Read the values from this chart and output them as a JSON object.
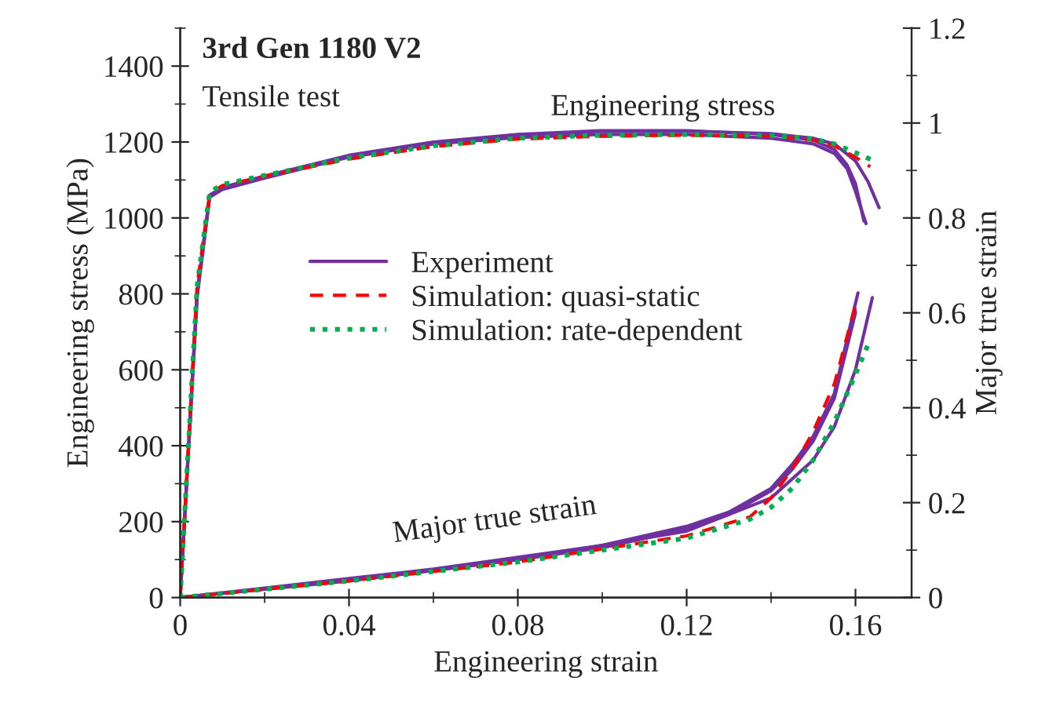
{
  "chart_data": {
    "type": "line",
    "title": "3rd Gen 1180 V2",
    "subtitle": "Tensile test",
    "xlabel": "Engineering strain",
    "ylabel": "Engineering stress (MPa)",
    "y2label": "Major true strain",
    "xlim": [
      0,
      0.1733
    ],
    "xticks": [
      0,
      0.04,
      0.08,
      0.12,
      0.16
    ],
    "ylim": [
      0,
      1500
    ],
    "yticks": [
      0,
      200,
      400,
      600,
      800,
      1000,
      1200,
      1400
    ],
    "y2lim": [
      0,
      1.2
    ],
    "y2ticks": [
      0,
      0.2,
      0.4,
      0.6,
      0.8,
      1,
      1.2
    ],
    "grid": false,
    "legend": "center left",
    "marker": "none",
    "annotations": [
      "Engineering stress",
      "Major true strain"
    ],
    "series": [
      {
        "name": "Experiment",
        "color": "#7030a0",
        "line_style": "solid",
        "x": [
          0,
          0.004,
          0.007,
          0.01,
          0.02,
          0.04,
          0.06,
          0.08,
          0.1,
          0.12,
          0.14,
          0.15,
          0.155,
          0.158,
          0.16,
          0.162
        ],
        "values": [
          0,
          800,
          1060,
          1080,
          1110,
          1165,
          1200,
          1220,
          1230,
          1230,
          1220,
          1205,
          1180,
          1140,
          1090,
          992
        ]
      },
      {
        "color": "#7030a0",
        "line_style": "solid",
        "x": [
          0,
          0.004,
          0.007,
          0.01,
          0.02,
          0.04,
          0.06,
          0.08,
          0.1,
          0.12,
          0.14,
          0.15,
          0.155,
          0.158,
          0.16,
          0.1625
        ],
        "values": [
          0,
          790,
          1055,
          1075,
          1105,
          1160,
          1195,
          1212,
          1220,
          1220,
          1210,
          1195,
          1170,
          1130,
          1070,
          985
        ]
      },
      {
        "color": "#7030a0",
        "line_style": "solid",
        "x": [
          0,
          0.004,
          0.007,
          0.01,
          0.02,
          0.04,
          0.06,
          0.08,
          0.1,
          0.12,
          0.14,
          0.15,
          0.155,
          0.16,
          0.163,
          0.1656
        ],
        "values": [
          0,
          800,
          1060,
          1080,
          1110,
          1162,
          1198,
          1218,
          1228,
          1228,
          1222,
          1210,
          1195,
          1150,
          1095,
          1027
        ]
      },
      {
        "name": "Simulation: quasi-static",
        "color": "#ff0000",
        "line_style": "dashed",
        "x": [
          0,
          0.004,
          0.007,
          0.01,
          0.02,
          0.04,
          0.06,
          0.08,
          0.1,
          0.12,
          0.14,
          0.15,
          0.155,
          0.16,
          0.1635
        ],
        "values": [
          0,
          820,
          1065,
          1085,
          1110,
          1155,
          1188,
          1208,
          1215,
          1218,
          1215,
          1205,
          1190,
          1160,
          1135
        ]
      },
      {
        "name": "Simulation: rate-dependent",
        "color": "#00b050",
        "line_style": "dotted",
        "x": [
          0,
          0.004,
          0.007,
          0.01,
          0.02,
          0.04,
          0.06,
          0.08,
          0.1,
          0.12,
          0.14,
          0.15,
          0.155,
          0.16,
          0.1645
        ],
        "values": [
          0,
          820,
          1068,
          1088,
          1112,
          1158,
          1190,
          1210,
          1218,
          1220,
          1217,
          1208,
          1195,
          1172,
          1150
        ]
      },
      {
        "color": "#7030a0",
        "line_style": "solid",
        "axis": "y2",
        "x": [
          0,
          0.02,
          0.04,
          0.06,
          0.08,
          0.1,
          0.12,
          0.13,
          0.14,
          0.145,
          0.15,
          0.155,
          0.16,
          0.1606
        ],
        "values": [
          0,
          0.02,
          0.04,
          0.06,
          0.085,
          0.11,
          0.15,
          0.18,
          0.23,
          0.28,
          0.34,
          0.43,
          0.62,
          0.642
        ]
      },
      {
        "color": "#7030a0",
        "line_style": "solid",
        "axis": "y2",
        "x": [
          0,
          0.02,
          0.04,
          0.06,
          0.08,
          0.1,
          0.12,
          0.13,
          0.14,
          0.145,
          0.15,
          0.155,
          0.16,
          0.1598
        ],
        "values": [
          0,
          0.018,
          0.037,
          0.057,
          0.08,
          0.105,
          0.145,
          0.175,
          0.225,
          0.27,
          0.33,
          0.42,
          0.6,
          0.61
        ]
      },
      {
        "color": "#7030a0",
        "line_style": "solid",
        "axis": "y2",
        "x": [
          0,
          0.04,
          0.08,
          0.12,
          0.14,
          0.15,
          0.155,
          0.16,
          0.164
        ],
        "values": [
          0,
          0.035,
          0.08,
          0.14,
          0.21,
          0.29,
          0.36,
          0.48,
          0.632
        ]
      },
      {
        "color": "#ff0000",
        "line_style": "dashed",
        "axis": "y2",
        "x": [
          0,
          0.04,
          0.08,
          0.12,
          0.135,
          0.14,
          0.145,
          0.15,
          0.155,
          0.16
        ],
        "values": [
          0,
          0.035,
          0.075,
          0.13,
          0.17,
          0.21,
          0.27,
          0.35,
          0.45,
          0.616
        ]
      },
      {
        "color": "#00b050",
        "line_style": "dotted",
        "axis": "y2",
        "x": [
          0,
          0.04,
          0.08,
          0.12,
          0.135,
          0.14,
          0.145,
          0.15,
          0.155,
          0.16,
          0.1633
        ],
        "values": [
          0,
          0.035,
          0.075,
          0.125,
          0.165,
          0.19,
          0.23,
          0.29,
          0.37,
          0.47,
          0.54
        ]
      }
    ]
  }
}
